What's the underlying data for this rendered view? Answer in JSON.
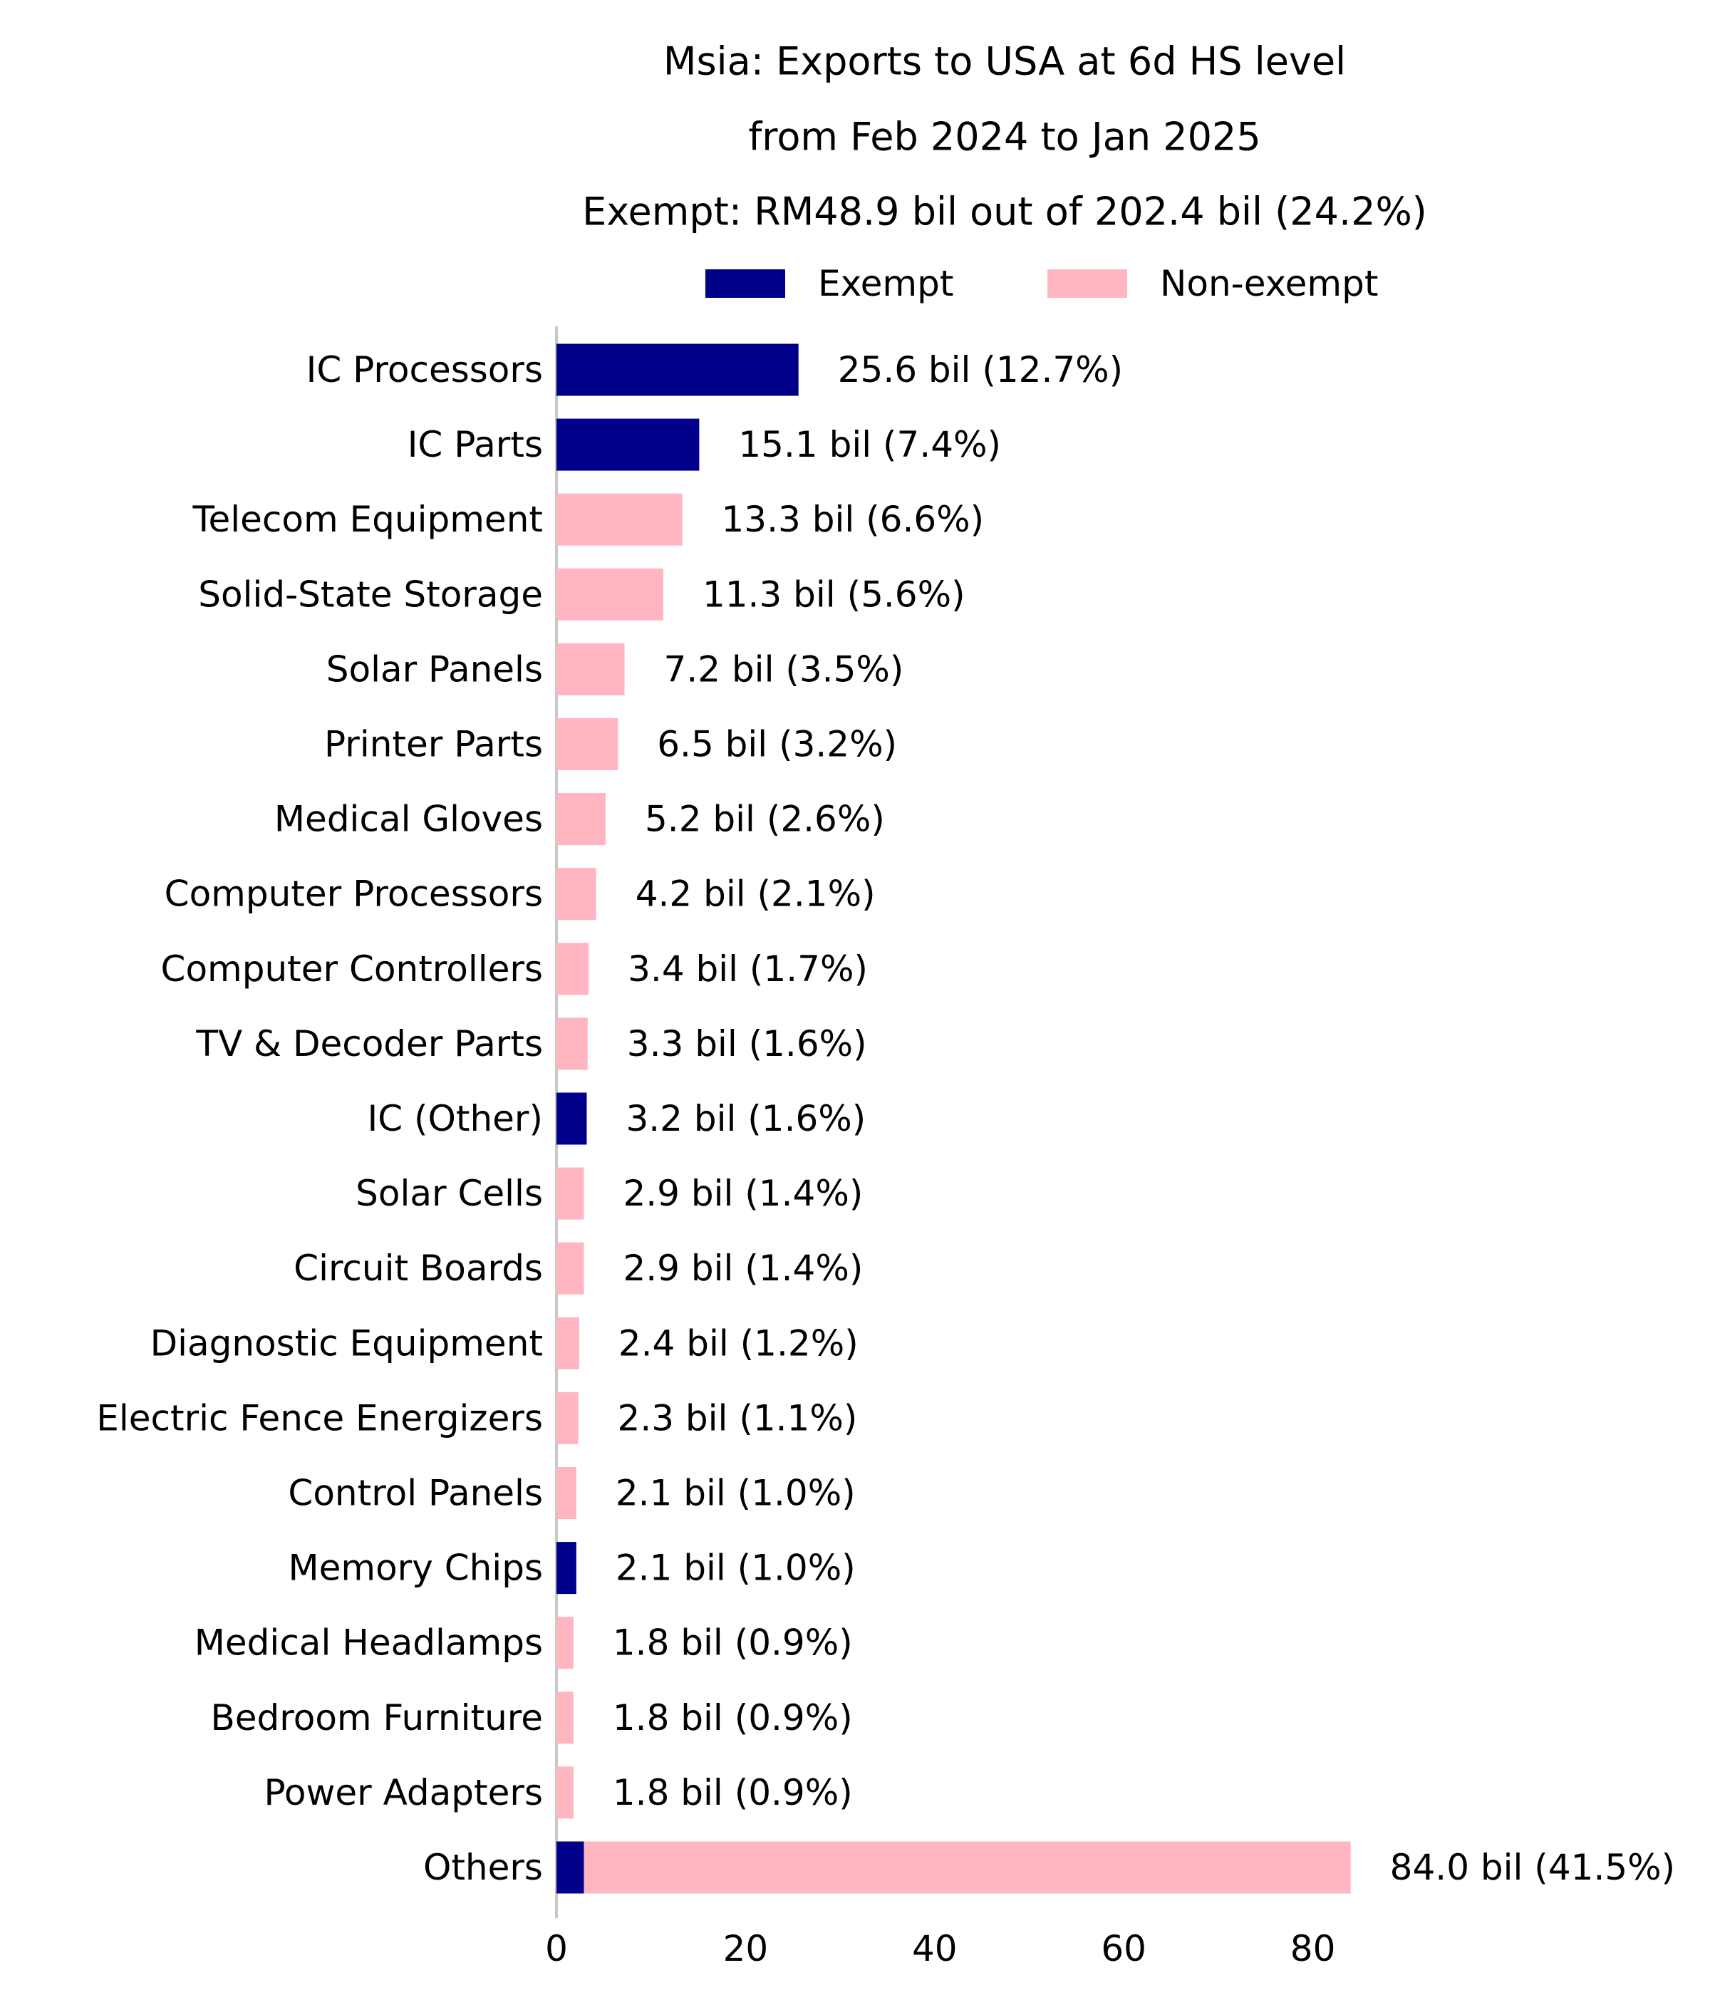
{
  "chart_data": {
    "type": "bar",
    "orientation": "horizontal",
    "stacked": true,
    "title": [
      "Msia: Exports to USA at 6d HS level",
      "from Feb 2024 to Jan 2025",
      "Exempt: RM48.9 bil out of 202.4 bil (24.2%)"
    ],
    "xlabel": "",
    "ylabel": "",
    "xlim": [
      0,
      84
    ],
    "xticks": [
      "0",
      "20",
      "40",
      "60",
      "80"
    ],
    "grid": false,
    "legend_position": "top",
    "categories": [
      "IC Processors",
      "IC Parts",
      "Telecom Equipment",
      "Solid-State Storage",
      "Solar Panels",
      "Printer Parts",
      "Medical Gloves",
      "Computer Processors",
      "Computer Controllers",
      "TV & Decoder Parts",
      "IC (Other)",
      "Solar Cells",
      "Circuit Boards",
      "Diagnostic Equipment",
      "Electric Fence Energizers",
      "Control Panels",
      "Memory Chips",
      "Medical Headlamps",
      "Bedroom Furniture",
      "Power Adapters",
      "Others"
    ],
    "series": [
      {
        "name": "Exempt",
        "color": "#00008b",
        "values": [
          25.6,
          15.1,
          0,
          0,
          0,
          0,
          0,
          0,
          0,
          0,
          3.2,
          0,
          0,
          0,
          0,
          0,
          2.1,
          0,
          0,
          0,
          2.9
        ]
      },
      {
        "name": "Non-exempt",
        "color": "#ffb6c1",
        "values": [
          0,
          0,
          13.3,
          11.3,
          7.2,
          6.5,
          5.2,
          4.2,
          3.4,
          3.3,
          0,
          2.9,
          2.9,
          2.4,
          2.3,
          2.1,
          0,
          1.8,
          1.8,
          1.8,
          81.1
        ]
      }
    ],
    "data_labels": [
      "25.6 bil (12.7%)",
      "15.1 bil (7.4%)",
      "13.3 bil (6.6%)",
      "11.3 bil (5.6%)",
      "7.2 bil (3.5%)",
      "6.5 bil (3.2%)",
      "5.2 bil (2.6%)",
      "4.2 bil (2.1%)",
      "3.4 bil (1.7%)",
      "3.3 bil (1.6%)",
      "3.2 bil (1.6%)",
      "2.9 bil (1.4%)",
      "2.9 bil (1.4%)",
      "2.4 bil (1.2%)",
      "2.3 bil (1.1%)",
      "2.1 bil (1.0%)",
      "2.1 bil (1.0%)",
      "1.8 bil (0.9%)",
      "1.8 bil (0.9%)",
      "1.8 bil (0.9%)",
      "84.0 bil (41.5%)"
    ]
  }
}
